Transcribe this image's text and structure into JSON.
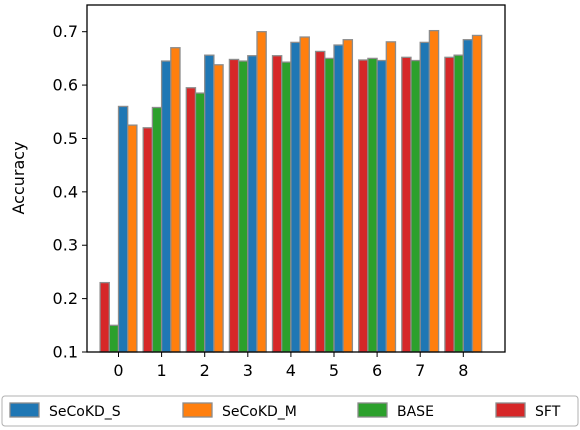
{
  "chart_data": {
    "type": "bar",
    "title": "",
    "xlabel": "",
    "ylabel": "Accuracy",
    "categories": [
      "0",
      "1",
      "2",
      "3",
      "4",
      "5",
      "6",
      "7",
      "8"
    ],
    "ylim": [
      0.1,
      0.75
    ],
    "yticks": [
      "0.1",
      "0.2",
      "0.3",
      "0.4",
      "0.5",
      "0.6",
      "0.7"
    ],
    "grid": false,
    "legend_position": "bottom",
    "series": [
      {
        "name": "SFT",
        "color": "#d62728",
        "values": [
          0.23,
          0.52,
          0.595,
          0.648,
          0.655,
          0.663,
          0.647,
          0.652,
          0.652
        ]
      },
      {
        "name": "BASE",
        "color": "#2ca02c",
        "values": [
          0.15,
          0.558,
          0.585,
          0.645,
          0.643,
          0.65,
          0.65,
          0.646,
          0.656
        ]
      },
      {
        "name": "SeCoKD_S",
        "color": "#1f77b4",
        "values": [
          0.56,
          0.645,
          0.656,
          0.655,
          0.68,
          0.675,
          0.646,
          0.68,
          0.685
        ]
      },
      {
        "name": "SeCoKD_M",
        "color": "#ff7f0e",
        "values": [
          0.525,
          0.67,
          0.638,
          0.7,
          0.69,
          0.685,
          0.681,
          0.702,
          0.693
        ]
      }
    ],
    "legend_order": [
      "SeCoKD_S",
      "SeCoKD_M",
      "BASE",
      "SFT"
    ]
  }
}
